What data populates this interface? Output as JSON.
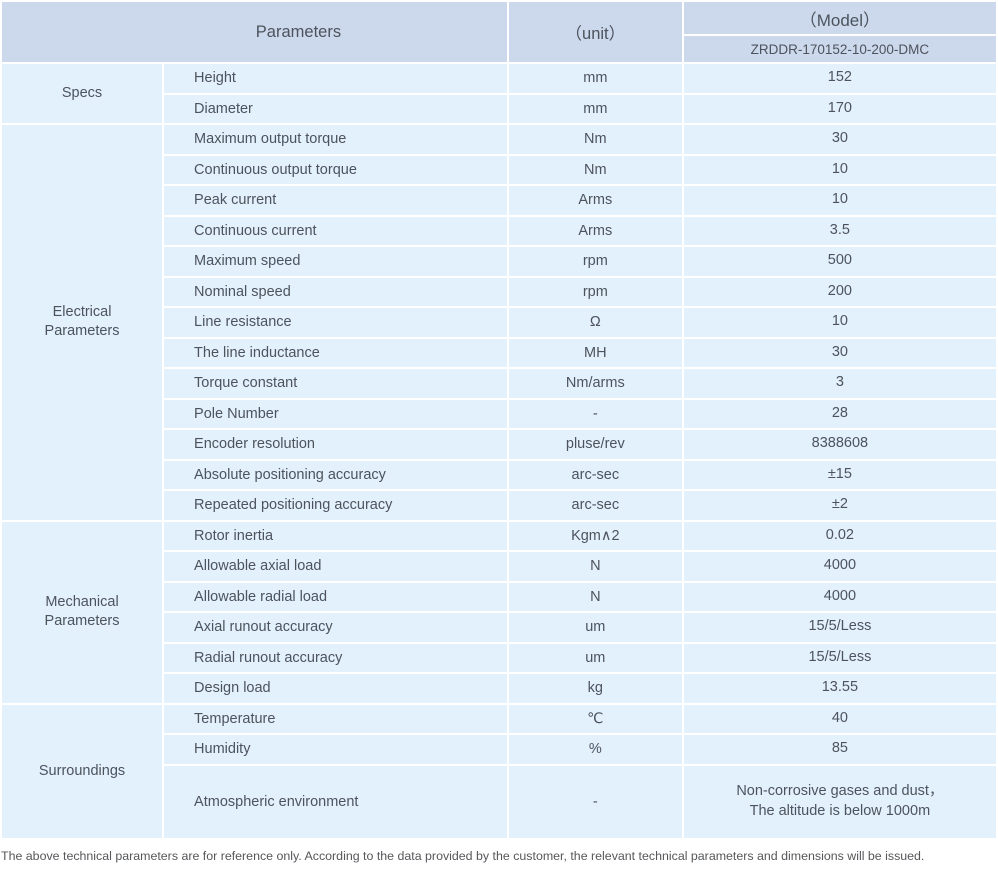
{
  "colors": {
    "header_bg": "#ccd8ec",
    "row_bg": "#e3f1fc",
    "text": "#4d535c",
    "separator": "#ffffff",
    "footer_text": "#55575a"
  },
  "table": {
    "header": {
      "parameters_label": "Parameters",
      "unit_label": "（unit）",
      "model_label": "（Model）",
      "model_number": "ZRDDR-170152-10-200-DMC"
    },
    "groups": [
      {
        "name": "Specs",
        "rows": [
          {
            "name": "Height",
            "unit": "mm",
            "value": "152"
          },
          {
            "name": "Diameter",
            "unit": "mm",
            "value": "170"
          }
        ]
      },
      {
        "name": "Electrical\nParameters",
        "rows": [
          {
            "name": "Maximum output torque",
            "unit": "Nm",
            "value": "30"
          },
          {
            "name": "Continuous output torque",
            "unit": "Nm",
            "value": "10"
          },
          {
            "name": "Peak current",
            "unit": "Arms",
            "value": "10"
          },
          {
            "name": "Continuous current",
            "unit": "Arms",
            "value": "3.5"
          },
          {
            "name": "Maximum speed",
            "unit": "rpm",
            "value": "500"
          },
          {
            "name": "Nominal speed",
            "unit": "rpm",
            "value": "200"
          },
          {
            "name": "Line resistance",
            "unit": "Ω",
            "value": "10"
          },
          {
            "name": "The line inductance",
            "unit": "MH",
            "value": "30"
          },
          {
            "name": "Torque constant",
            "unit": "Nm/arms",
            "value": "3"
          },
          {
            "name": "Pole Number",
            "unit": "-",
            "value": "28"
          },
          {
            "name": "Encoder resolution",
            "unit": "pluse/rev",
            "value": "8388608"
          },
          {
            "name": "Absolute positioning accuracy",
            "unit": "arc-sec",
            "value": "±15"
          },
          {
            "name": "Repeated positioning accuracy",
            "unit": "arc-sec",
            "value": "±2"
          }
        ]
      },
      {
        "name": "Mechanical\nParameters",
        "rows": [
          {
            "name": "Rotor inertia",
            "unit": "Kgm∧2",
            "value": "0.02"
          },
          {
            "name": "Allowable axial load",
            "unit": "N",
            "value": "4000"
          },
          {
            "name": "Allowable radial load",
            "unit": "N",
            "value": "4000"
          },
          {
            "name": "Axial runout accuracy",
            "unit": "um",
            "value": "15/5/Less"
          },
          {
            "name": "Radial runout accuracy",
            "unit": "um",
            "value": "15/5/Less"
          },
          {
            "name": "Design load",
            "unit": "kg",
            "value": "13.55"
          }
        ]
      },
      {
        "name": "Surroundings",
        "rows": [
          {
            "name": "Temperature",
            "unit": "℃",
            "value": "40"
          },
          {
            "name": "Humidity",
            "unit": "%",
            "value": "85"
          },
          {
            "name": "Atmospheric environment",
            "unit": "-",
            "value": "Non-corrosive gases and dust，\nThe altitude is below 1000m"
          }
        ]
      }
    ]
  },
  "footer": {
    "note": "The above technical parameters are for reference only. According to the data provided by the customer, the relevant technical parameters and dimensions will be issued."
  }
}
